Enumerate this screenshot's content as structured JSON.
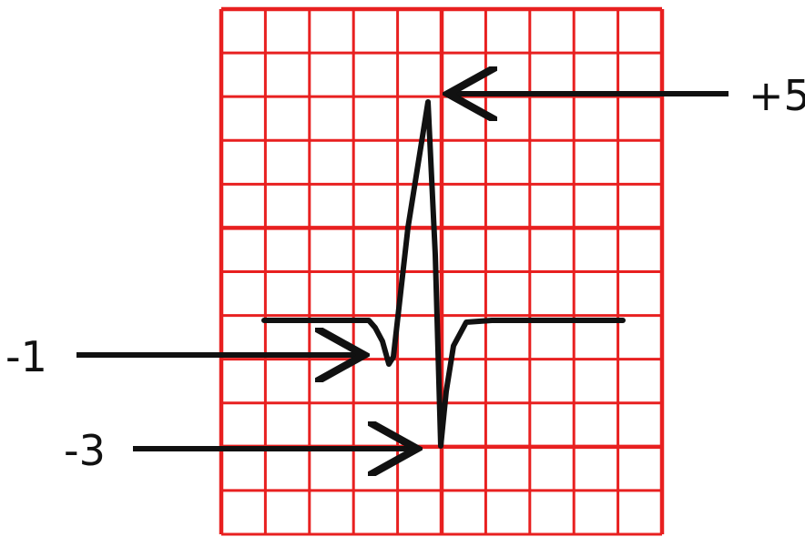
{
  "labels": {
    "peak": "+5",
    "q_dip": "-1",
    "s_dip": "-3"
  },
  "grid": {
    "columns": 10,
    "rows": 12,
    "color": "#e82020"
  },
  "trace": {
    "color": "#111111",
    "baseline_level": 0,
    "peak_level": 5,
    "q_level": -1,
    "s_level": -3
  }
}
